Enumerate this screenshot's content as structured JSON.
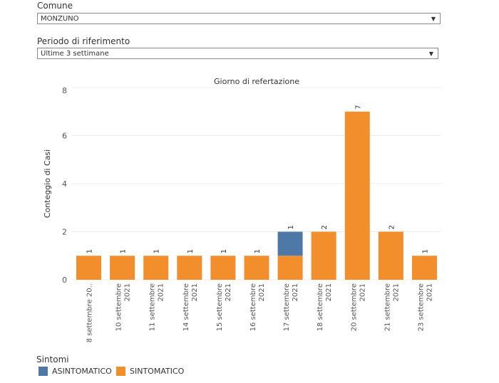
{
  "filters": {
    "comune": {
      "label": "Comune",
      "value": "MONZUNO"
    },
    "periodo": {
      "label": "Periodo di riferimento",
      "value": "Ultime 3 settimane"
    }
  },
  "legend": {
    "title": "Sintomi",
    "items": [
      {
        "label": "ASINTOMATICO",
        "color": "#4e79a7"
      },
      {
        "label": "SINTOMATICO",
        "color": "#f28e2b"
      }
    ]
  },
  "chart_data": {
    "type": "bar",
    "stacked": true,
    "title": "Giorno di refertazione",
    "xlabel": "",
    "ylabel": "Conteggio di Casi",
    "ylim": [
      0,
      8
    ],
    "yticks": [
      0,
      2,
      4,
      6,
      8
    ],
    "grid": true,
    "legend_position": "bottom-left",
    "categories": [
      [
        "8 settembre 20.."
      ],
      [
        "10 settembre",
        "2021"
      ],
      [
        "11 settembre",
        "2021"
      ],
      [
        "14 settembre",
        "2021"
      ],
      [
        "15 settembre",
        "2021"
      ],
      [
        "16 settembre",
        "2021"
      ],
      [
        "17 settembre",
        "2021"
      ],
      [
        "18 settembre",
        "2021"
      ],
      [
        "20 settembre",
        "2021"
      ],
      [
        "21 settembre",
        "2021"
      ],
      [
        "23 settembre",
        "2021"
      ]
    ],
    "series": [
      {
        "name": "SINTOMATICO",
        "color": "#f28e2b",
        "values": [
          1,
          1,
          1,
          1,
          1,
          1,
          1,
          2,
          7,
          2,
          1
        ]
      },
      {
        "name": "ASINTOMATICO",
        "color": "#4e79a7",
        "values": [
          0,
          0,
          0,
          0,
          0,
          0,
          1,
          0,
          0,
          0,
          0
        ]
      }
    ]
  }
}
